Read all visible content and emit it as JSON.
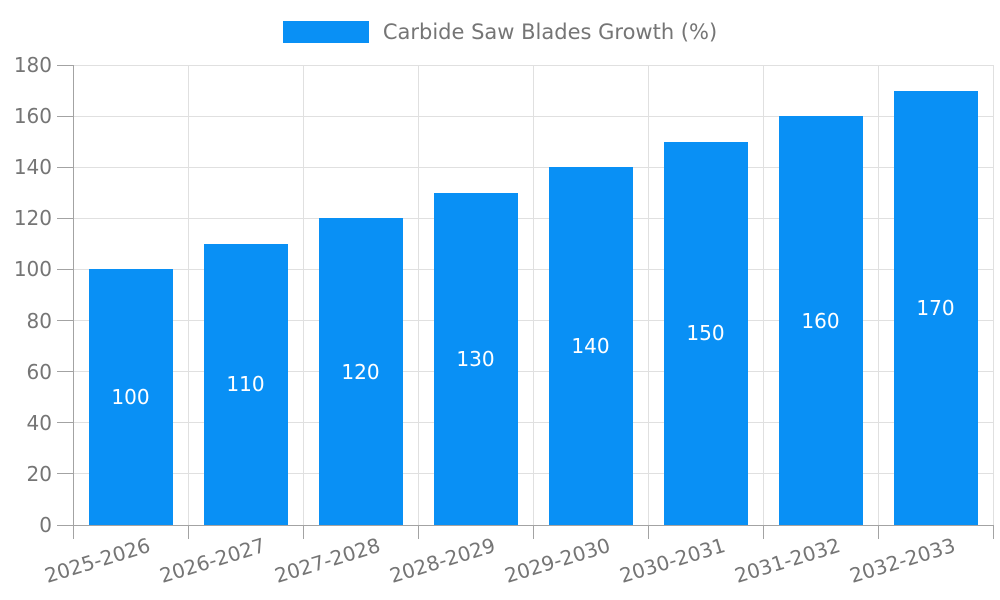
{
  "legend": {
    "label": "Carbide Saw Blades Growth (%)"
  },
  "chart_data": {
    "type": "bar",
    "title": "",
    "legend_entries": [
      "Carbide Saw Blades Growth (%)"
    ],
    "legend_position": "top-center",
    "categories": [
      "2025-2026",
      "2026-2027",
      "2027-2028",
      "2028-2029",
      "2029-2030",
      "2030-2031",
      "2031-2032",
      "2032-2033"
    ],
    "values": [
      100,
      110,
      120,
      130,
      140,
      150,
      160,
      170
    ],
    "bar_value_labels": [
      "100",
      "110",
      "120",
      "130",
      "140",
      "150",
      "160",
      "170"
    ],
    "xlabel": "",
    "ylabel": "",
    "ylim": [
      0,
      180
    ],
    "yticks": [
      0,
      20,
      40,
      60,
      80,
      100,
      120,
      140,
      160,
      180
    ],
    "grid": true,
    "colors": {
      "bar": "#0990F5",
      "tick_text": "#757575",
      "bar_label_text": "#FFFFFF",
      "grid_line": "#E0E0E0",
      "axis_line": "#A3A3A3"
    }
  }
}
